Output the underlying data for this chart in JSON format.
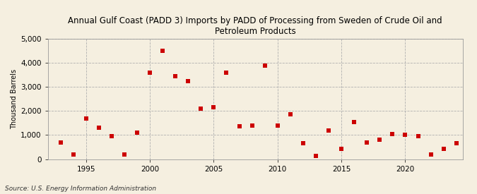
{
  "title": "Annual Gulf Coast (PADD 3) Imports by PADD of Processing from Sweden of Crude Oil and\nPetroleum Products",
  "ylabel": "Thousand Barrels",
  "source": "Source: U.S. Energy Information Administration",
  "background_color": "#f5efe0",
  "plot_bg_color": "#f5efe0",
  "marker_color": "#cc0000",
  "xlim": [
    1992,
    2024.5
  ],
  "ylim": [
    0,
    5000
  ],
  "yticks": [
    0,
    1000,
    2000,
    3000,
    4000,
    5000
  ],
  "xticks": [
    1995,
    2000,
    2005,
    2010,
    2015,
    2020
  ],
  "years": [
    1993,
    1994,
    1995,
    1996,
    1997,
    1998,
    1999,
    2000,
    2001,
    2002,
    2003,
    2004,
    2005,
    2006,
    2007,
    2008,
    2009,
    2010,
    2011,
    2012,
    2013,
    2014,
    2015,
    2016,
    2017,
    2018,
    2019,
    2020,
    2021,
    2022,
    2023,
    2024
  ],
  "values": [
    700,
    180,
    1700,
    1300,
    950,
    200,
    1100,
    3600,
    4500,
    3450,
    3250,
    2100,
    2150,
    3600,
    1350,
    1400,
    3900,
    1400,
    1850,
    650,
    125,
    1200,
    425,
    1550,
    700,
    800,
    1050,
    1000,
    950,
    200,
    425,
    650
  ]
}
